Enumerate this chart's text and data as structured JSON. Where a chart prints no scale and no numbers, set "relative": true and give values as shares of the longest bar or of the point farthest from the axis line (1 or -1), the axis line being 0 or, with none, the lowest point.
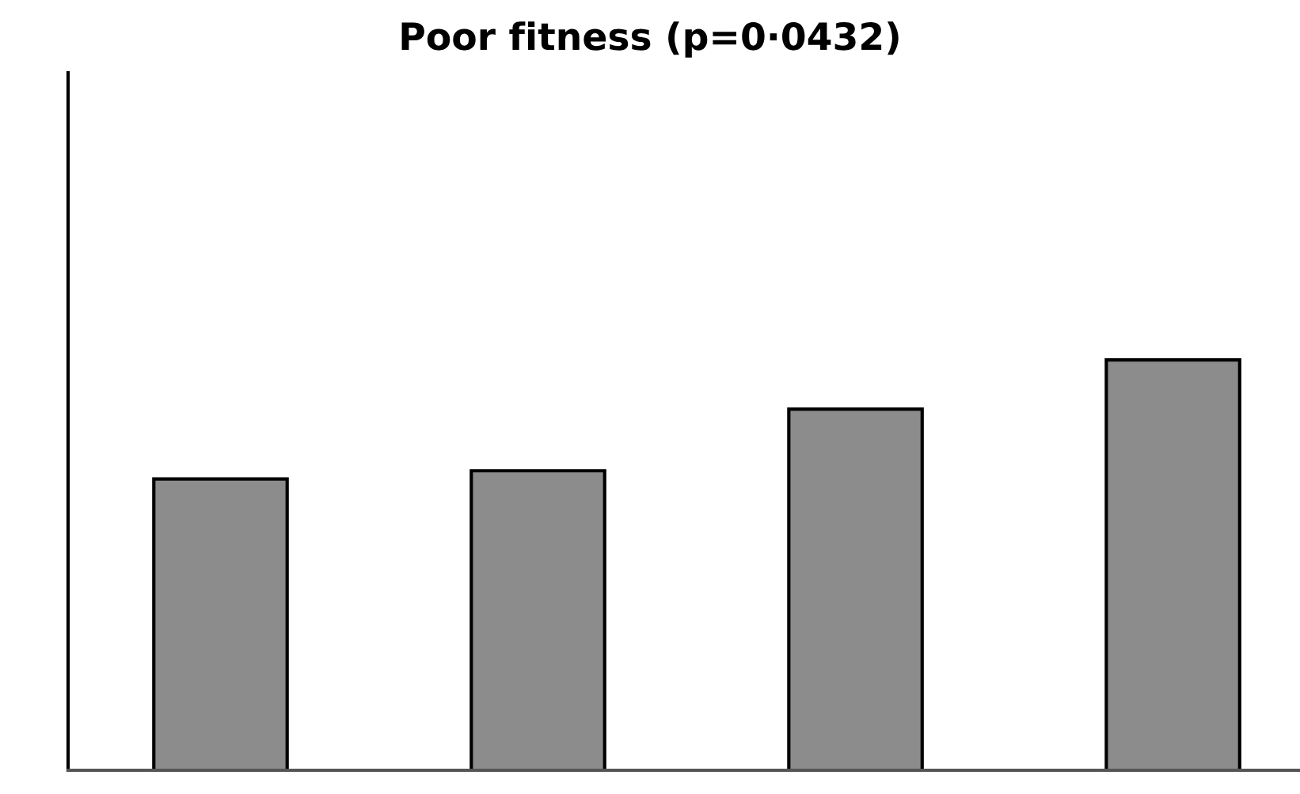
{
  "chart_data": {
    "type": "bar",
    "title": "Poor fitness (p=0·0432)",
    "categories": [
      null,
      null,
      null,
      null
    ],
    "values": [
      0.71,
      0.73,
      0.88,
      1.0
    ],
    "color": "#8c8c8c",
    "relative": true,
    "grid": false,
    "legend": false
  }
}
